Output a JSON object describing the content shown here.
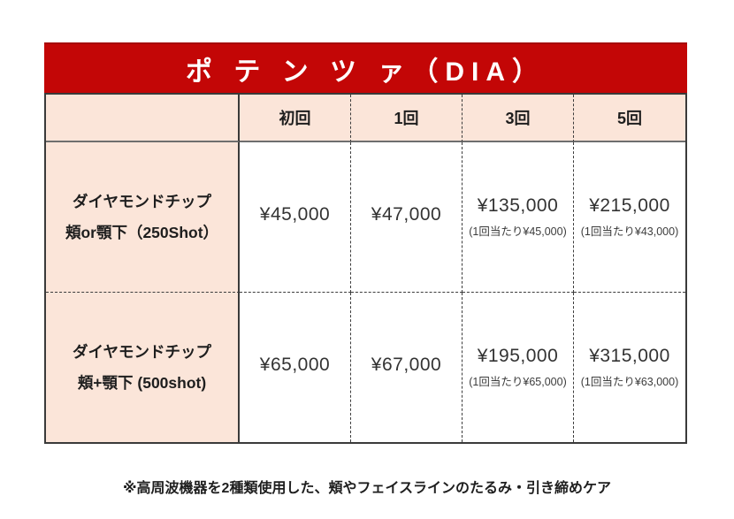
{
  "title": "ポ テ ン ツ ァ（DIA）",
  "table": {
    "columns": [
      "初回",
      "1回",
      "3回",
      "5回"
    ],
    "rows": [
      {
        "label_line1": "ダイヤモンドチップ",
        "label_line2": "頬or顎下（250Shot）",
        "prices": [
          {
            "amount": "¥45,000",
            "per": ""
          },
          {
            "amount": "¥47,000",
            "per": ""
          },
          {
            "amount": "¥135,000",
            "per": "(1回当たり¥45,000)"
          },
          {
            "amount": "¥215,000",
            "per": "(1回当たり¥43,000)"
          }
        ]
      },
      {
        "label_line1": "ダイヤモンドチップ",
        "label_line2": "頬+顎下 (500shot)",
        "prices": [
          {
            "amount": "¥65,000",
            "per": ""
          },
          {
            "amount": "¥67,000",
            "per": ""
          },
          {
            "amount": "¥195,000",
            "per": "(1回当たり¥65,000)"
          },
          {
            "amount": "¥315,000",
            "per": "(1回当たり¥63,000)"
          }
        ]
      }
    ]
  },
  "footnote": "※高周波機器を2種類使用した、頬やフェイスラインのたるみ・引き締めケア",
  "colors": {
    "banner_red": "#c30606",
    "cell_peach": "#fbe5d9",
    "border_dark": "#3a3a3a",
    "header_divider_gray": "#6e6e6e",
    "text_dark": "#1e1e1e"
  }
}
